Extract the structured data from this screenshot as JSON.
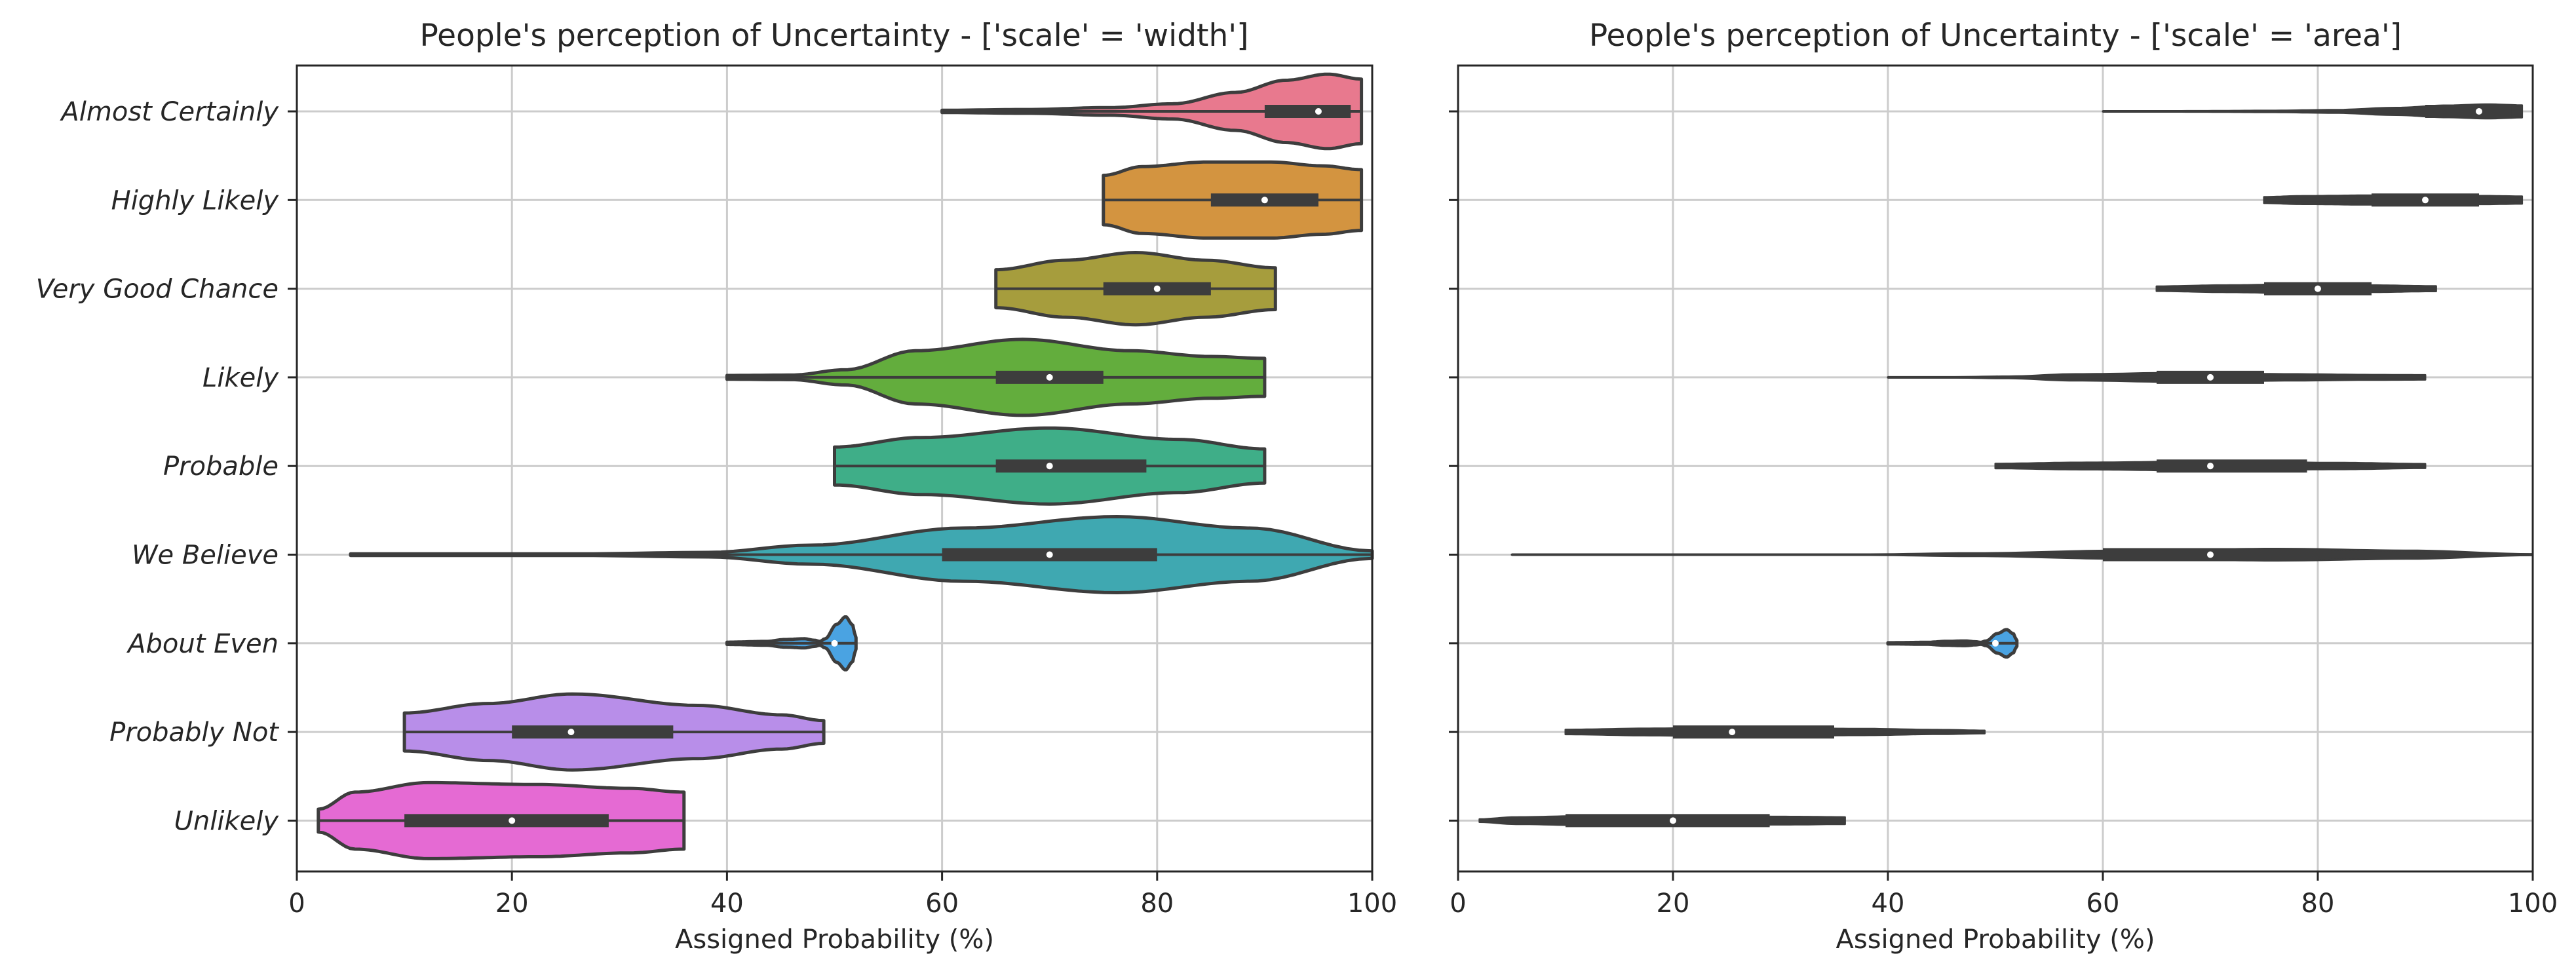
{
  "chart_data": [
    {
      "type": "violin",
      "title": "People's perception of Uncertainty - ['scale' = 'width']",
      "xlabel": "Assigned Probability (%)",
      "ylabel": "",
      "xlim": [
        0,
        100
      ],
      "xticks": [
        "0",
        "20",
        "40",
        "60",
        "80",
        "100"
      ],
      "grid": true,
      "categories": [
        "Almost Certainly",
        "Highly Likely",
        "Very Good Chance",
        "Likely",
        "Probable",
        "We Believe",
        "About Even",
        "Probably Not",
        "Unlikely"
      ],
      "colors": [
        "#e8798e",
        "#d39440",
        "#a69d3d",
        "#63ad3d",
        "#3fae88",
        "#3fa8b1",
        "#4aa3e2",
        "#b88ee9",
        "#e56ad3"
      ],
      "stats": [
        {
          "min": 60,
          "q1": 90,
          "median": 95,
          "q3": 98,
          "max": 99
        },
        {
          "min": 75,
          "q1": 85,
          "median": 90,
          "q3": 95,
          "max": 99
        },
        {
          "min": 65,
          "q1": 75,
          "median": 80,
          "q3": 85,
          "max": 91
        },
        {
          "min": 40,
          "q1": 65,
          "median": 70,
          "q3": 75,
          "max": 90
        },
        {
          "min": 50,
          "q1": 65,
          "median": 70,
          "q3": 79,
          "max": 90
        },
        {
          "min": 5,
          "q1": 60,
          "median": 70,
          "q3": 80,
          "max": 100
        },
        {
          "min": 40,
          "q1": 50,
          "median": 50,
          "q3": 50,
          "max": 52
        },
        {
          "min": 10,
          "q1": 20,
          "median": 25.5,
          "q3": 35,
          "max": 49
        },
        {
          "min": 2,
          "q1": 10,
          "median": 20,
          "q3": 29,
          "max": 36
        }
      ]
    },
    {
      "type": "violin",
      "title": "People's perception of Uncertainty - ['scale' = 'area']",
      "xlabel": "Assigned Probability (%)",
      "ylabel": "",
      "xlim": [
        0,
        100
      ],
      "xticks": [
        "0",
        "20",
        "40",
        "60",
        "80",
        "100"
      ],
      "grid": true,
      "categories": [
        "Almost Certainly",
        "Highly Likely",
        "Very Good Chance",
        "Likely",
        "Probable",
        "We Believe",
        "About Even",
        "Probably Not",
        "Unlikely"
      ],
      "colors": [
        "#3d3d3d",
        "#3d3d3d",
        "#3d3d3d",
        "#3d3d3d",
        "#3d3d3d",
        "#3d3d3d",
        "#4aa3e2",
        "#3d3d3d",
        "#3d3d3d"
      ],
      "stats": [
        {
          "min": 60,
          "q1": 90,
          "median": 95,
          "q3": 98,
          "max": 99
        },
        {
          "min": 75,
          "q1": 85,
          "median": 90,
          "q3": 95,
          "max": 99
        },
        {
          "min": 65,
          "q1": 75,
          "median": 80,
          "q3": 85,
          "max": 91
        },
        {
          "min": 40,
          "q1": 65,
          "median": 70,
          "q3": 75,
          "max": 90
        },
        {
          "min": 50,
          "q1": 65,
          "median": 70,
          "q3": 79,
          "max": 90
        },
        {
          "min": 5,
          "q1": 60,
          "median": 70,
          "q3": 80,
          "max": 100
        },
        {
          "min": 40,
          "q1": 50,
          "median": 50,
          "q3": 50,
          "max": 52
        },
        {
          "min": 10,
          "q1": 20,
          "median": 25.5,
          "q3": 35,
          "max": 49
        },
        {
          "min": 2,
          "q1": 10,
          "median": 20,
          "q3": 29,
          "max": 36
        }
      ]
    }
  ]
}
